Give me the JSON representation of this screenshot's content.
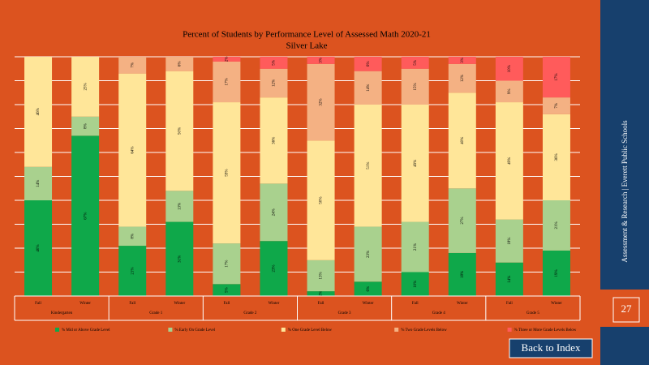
{
  "chart_data": {
    "type": "stacked_bar",
    "title": "Percent of Students by Performance Level of Assessed Math 2020-21",
    "subtitle": "Silver Lake",
    "categories": [
      "Fall",
      "Winter",
      "Fall",
      "Winter",
      "Fall",
      "Winter",
      "Fall",
      "Winter",
      "Fall",
      "Winter",
      "Fall",
      "Winter"
    ],
    "groups": [
      "Kindergarten",
      "Grade 1",
      "Grade 2",
      "Grade 3",
      "Grade 4",
      "Grade 5"
    ],
    "ylim": [
      0,
      100
    ],
    "yticks": [
      0,
      10,
      20,
      30,
      40,
      50,
      60,
      70,
      80,
      90,
      100
    ],
    "grid": true,
    "series": [
      {
        "name": "% Mid or Above Grade Level",
        "color": "#0fa84a",
        "values": [
          40,
          67,
          21,
          31,
          5,
          23,
          2,
          6,
          10,
          18,
          14,
          19
        ],
        "value_labels": [
          "40%",
          "67%",
          "21%",
          "31%",
          "5%",
          "23%",
          "2%",
          "6%",
          "10%",
          "18%",
          "14%",
          "19%"
        ]
      },
      {
        "name": "% Early On Grade Level",
        "color": "#a9d18e",
        "values": [
          14,
          8,
          8,
          13,
          17,
          24,
          13,
          23,
          21,
          27,
          18,
          21
        ],
        "value_labels": [
          "14%",
          "8%",
          "8%",
          "13%",
          "17%",
          "24%",
          "13%",
          "23%",
          "21%",
          "27%",
          "18%",
          "21%"
        ]
      },
      {
        "name": "% One Grade Level Below",
        "color": "#ffe699",
        "values": [
          46,
          25,
          64,
          50,
          59,
          36,
          50,
          51,
          49,
          40,
          49,
          36
        ],
        "value_labels": [
          "46%",
          "25%",
          "64%",
          "50%",
          "59%",
          "36%",
          "50%",
          "51%",
          "49%",
          "40%",
          "49%",
          "36%"
        ]
      },
      {
        "name": "% Two Grade Levels Below",
        "color": "#f4b183",
        "values": [
          0,
          0,
          7,
          6,
          17,
          12,
          32,
          14,
          15,
          12,
          9,
          7
        ],
        "value_labels": [
          null,
          null,
          "7%",
          "6%",
          "17%",
          "12%",
          "32%",
          "14%",
          "15%",
          "12%",
          "9%",
          "7%"
        ]
      },
      {
        "name": "% Three or More Grade Levels Below",
        "color": "#ff5b5b",
        "values": [
          0,
          0,
          0,
          0,
          2,
          5,
          3,
          6,
          5,
          3,
          10,
          17
        ],
        "value_labels": [
          null,
          null,
          null,
          null,
          "2%",
          "5%",
          "3%",
          "6%",
          "5%",
          "3%",
          "10%",
          "17%"
        ]
      }
    ]
  },
  "sidebar": {
    "text": "Assessment & Research | Everett Public Schools",
    "page_number": "27"
  },
  "button": "Back to Index"
}
